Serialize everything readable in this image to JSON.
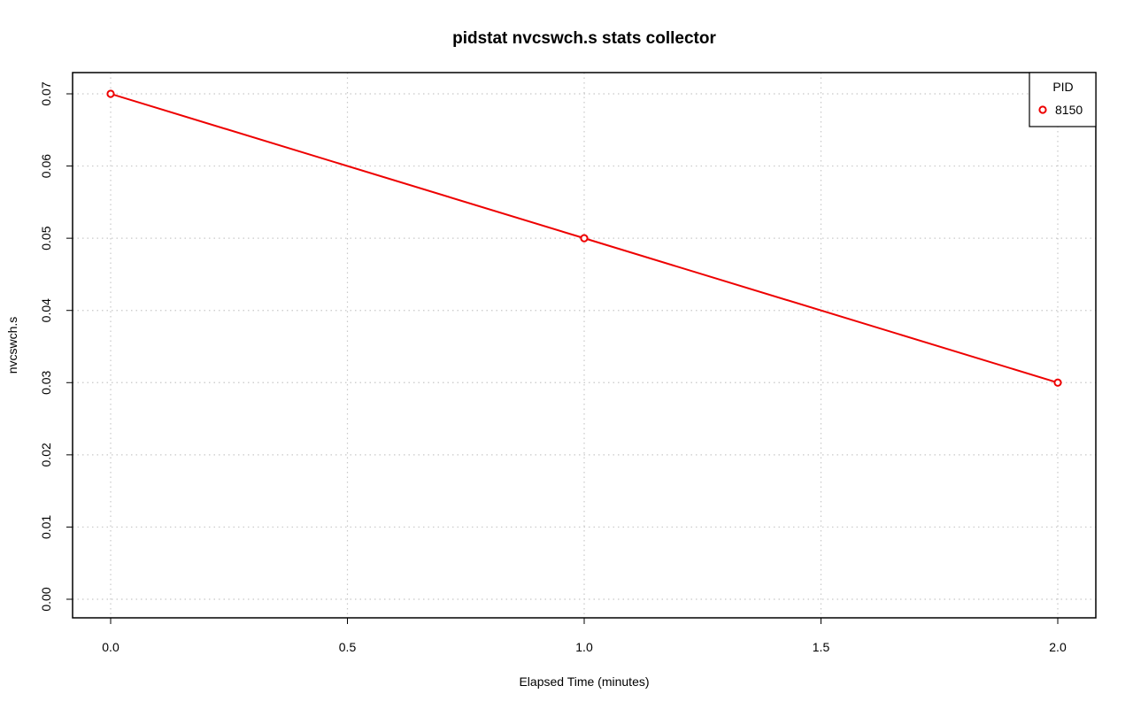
{
  "chart_data": {
    "type": "line",
    "title": "pidstat nvcswch.s stats collector",
    "xlabel": "Elapsed Time (minutes)",
    "ylabel": "nvcswch.s",
    "xlim": [
      0.0,
      2.0
    ],
    "ylim": [
      0.0,
      0.07
    ],
    "x_ticks": [
      0.0,
      0.5,
      1.0,
      1.5,
      2.0
    ],
    "x_tick_labels": [
      "0.0",
      "0.5",
      "1.0",
      "1.5",
      "2.0"
    ],
    "y_ticks": [
      0.0,
      0.01,
      0.02,
      0.03,
      0.04,
      0.05,
      0.06,
      0.07
    ],
    "y_tick_labels": [
      "0.00",
      "0.01",
      "0.02",
      "0.03",
      "0.04",
      "0.05",
      "0.06",
      "0.07"
    ],
    "grid": true,
    "legend": {
      "title": "PID",
      "position": "top-right"
    },
    "series": [
      {
        "name": "8150",
        "color": "#ee0000",
        "marker": "open-circle",
        "x": [
          0.0,
          1.0,
          2.0
        ],
        "y": [
          0.07,
          0.05,
          0.03
        ]
      }
    ]
  }
}
